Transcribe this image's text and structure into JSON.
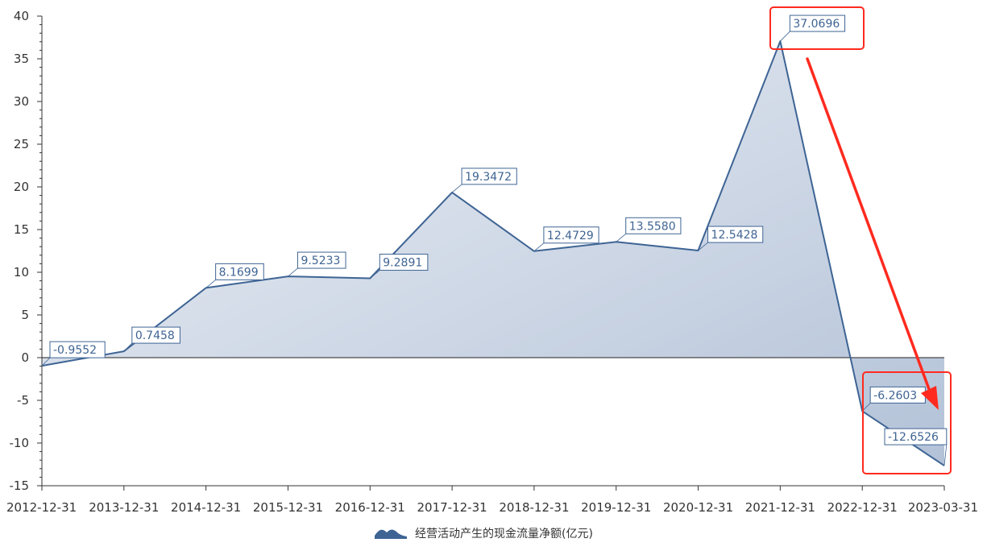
{
  "chart_data": {
    "type": "area",
    "x": [
      "2012-12-31",
      "2013-12-31",
      "2014-12-31",
      "2015-12-31",
      "2016-12-31",
      "2017-12-31",
      "2018-12-31",
      "2019-12-31",
      "2020-12-31",
      "2021-12-31",
      "2022-12-31",
      "2023-03-31"
    ],
    "series": [
      {
        "name": "经营活动产生的现金流量净额(亿元)",
        "values": [
          -0.9552,
          0.7458,
          8.1699,
          9.5233,
          9.2891,
          19.3472,
          12.4729,
          13.558,
          12.5428,
          37.0696,
          -6.2603,
          -12.6526
        ],
        "labels": [
          "-0.9552",
          "0.7458",
          "8.1699",
          "9.5233",
          "9.2891",
          "19.3472",
          "12.4729",
          "13.5580",
          "12.5428",
          "37.0696",
          "-6.2603",
          "-12.6526"
        ]
      }
    ],
    "ylim": [
      -15,
      40
    ],
    "yticks": [
      -15,
      -10,
      -5,
      0,
      5,
      10,
      15,
      20,
      25,
      30,
      35,
      40
    ],
    "ytick_labels": [
      "-15",
      "-10",
      "-5",
      "0",
      "5",
      "10",
      "15",
      "20",
      "25",
      "30",
      "35",
      "40"
    ],
    "grid": false,
    "legend_position": "bottom-center",
    "colors": {
      "line": "#3e6494",
      "area_light": "#e9edf4",
      "area_dark": "#b8c6da",
      "highlight": "#ff2a1f",
      "text": "#333333"
    },
    "annotations": {
      "highlight_boxes": [
        "2021-12-31 peak",
        "2022-12-31 to 2023-03-31 decline"
      ],
      "arrow": "peak to decline"
    }
  }
}
